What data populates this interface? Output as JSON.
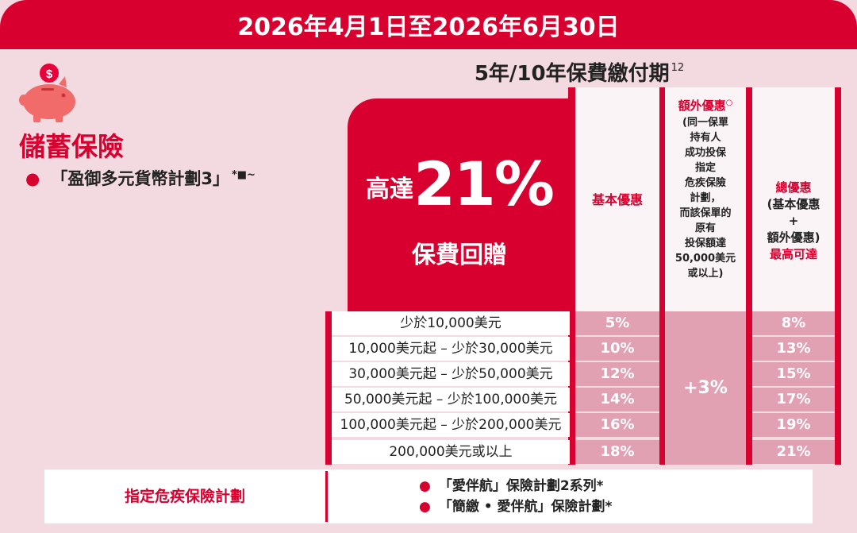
{
  "header": {
    "date_range": "2026年4月1日至2026年6月30日"
  },
  "period": {
    "title": "5年/10年保費繳付期",
    "footnote": "12"
  },
  "product": {
    "category": "儲蓄保險",
    "plan_name": "「盈御多元貨幣計劃3」",
    "plan_marks": "*■~",
    "icon": "piggy-bank-dollar-icon"
  },
  "hero": {
    "prefix": "高達",
    "value": "21%",
    "subtitle": "保費回贈"
  },
  "columns": {
    "basic": "基本優惠",
    "extra_title": "額外優惠",
    "extra_mark": "○",
    "extra_lines": [
      "(同一保單",
      "持有人",
      "成功投保",
      "指定",
      "危疾保險",
      "計劃，",
      "而該保單的",
      "原有",
      "投保額達",
      "50,000美元",
      "或以上)"
    ],
    "total_lines": [
      "總優惠",
      "(基本優惠",
      "+",
      "額外優惠)"
    ],
    "total_note": "最高可達"
  },
  "rows": [
    {
      "tier": "少於10,000美元",
      "basic": "5%",
      "total": "8%"
    },
    {
      "tier": "10,000美元起 – 少於30,000美元",
      "basic": "10%",
      "total": "13%"
    },
    {
      "tier": "30,000美元起 – 少於50,000美元",
      "basic": "12%",
      "total": "15%"
    },
    {
      "tier": "50,000美元起 – 少於100,000美元",
      "basic": "14%",
      "total": "17%"
    },
    {
      "tier": "100,000美元起 – 少於200,000美元",
      "basic": "16%",
      "total": "19%"
    },
    {
      "tier": "200,000美元或以上",
      "basic": "18%",
      "total": "21%"
    }
  ],
  "extra_value": "+3%",
  "designated": {
    "label": "指定危疾保險計劃",
    "plans": [
      "「愛伴航」保險計劃2系列*",
      "「簡繳 • 愛伴航」保險計劃*"
    ]
  },
  "colors": {
    "brand_red": "#d8002f",
    "background_pink": "#f3d9e0",
    "cell_pink": "#e2a0b3"
  }
}
